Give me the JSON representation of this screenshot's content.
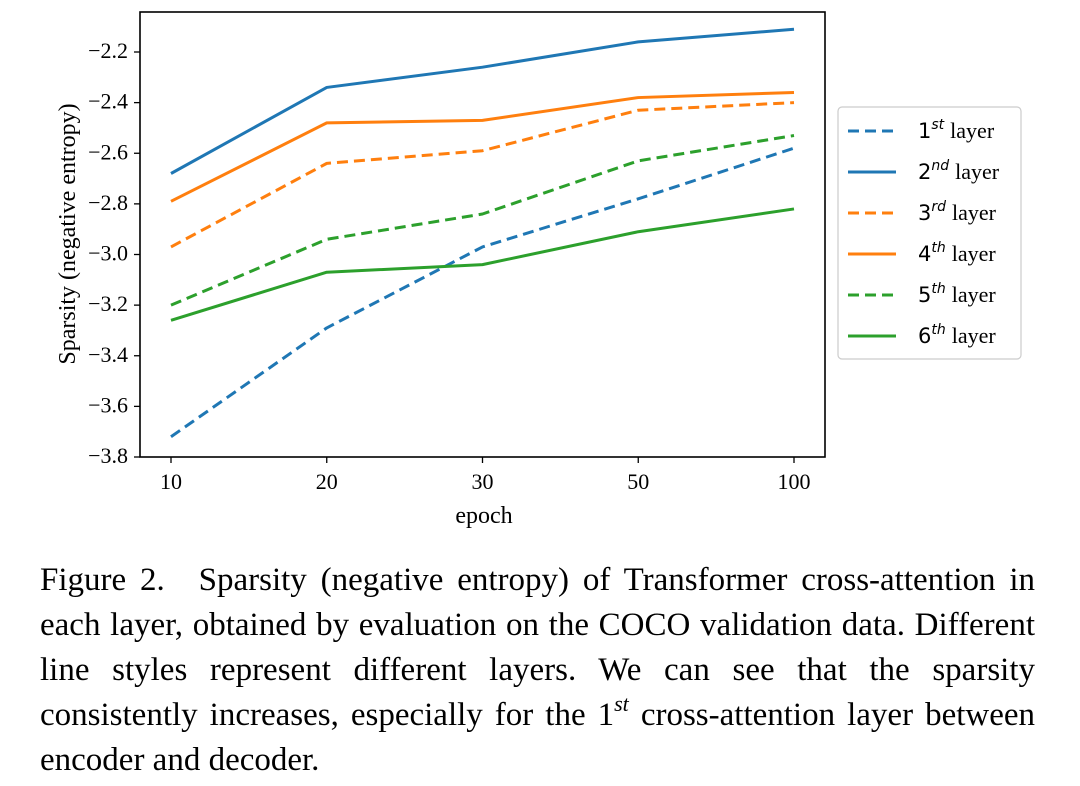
{
  "chart_data": {
    "type": "line",
    "title": "",
    "xlabel": "epoch",
    "ylabel": "Sparsity (negative entropy)",
    "categories": [
      "10",
      "20",
      "30",
      "50",
      "100"
    ],
    "ylim": [
      -3.8,
      -2.05
    ],
    "yticks": [
      -2.2,
      -2.4,
      -2.6,
      -2.8,
      -3.0,
      -3.2,
      -3.4,
      -3.6,
      -3.8
    ],
    "ytick_labels": [
      "−2.2",
      "−2.4",
      "−2.6",
      "−2.8",
      "−3.0",
      "−3.2",
      "−3.4",
      "−3.6",
      "−3.8"
    ],
    "legend_position": "right outside",
    "series": [
      {
        "name": "1st layer",
        "ord": "1",
        "sup": "st",
        "word": "layer",
        "color": "#1f77b4",
        "style": "dashed",
        "values": [
          -3.72,
          -3.29,
          -2.97,
          -2.78,
          -2.58
        ]
      },
      {
        "name": "2nd layer",
        "ord": "2",
        "sup": "nd",
        "word": "layer",
        "color": "#1f77b4",
        "style": "solid",
        "values": [
          -2.68,
          -2.34,
          -2.26,
          -2.16,
          -2.11
        ]
      },
      {
        "name": "3rd layer",
        "ord": "3",
        "sup": "rd",
        "word": "layer",
        "color": "#ff7f0e",
        "style": "dashed",
        "values": [
          -2.97,
          -2.64,
          -2.59,
          -2.43,
          -2.4
        ]
      },
      {
        "name": "4th layer",
        "ord": "4",
        "sup": "th",
        "word": "layer",
        "color": "#ff7f0e",
        "style": "solid",
        "values": [
          -2.79,
          -2.48,
          -2.47,
          -2.38,
          -2.36
        ]
      },
      {
        "name": "5th layer",
        "ord": "5",
        "sup": "th",
        "word": "layer",
        "color": "#2ca02c",
        "style": "dashed",
        "values": [
          -3.2,
          -2.94,
          -2.84,
          -2.63,
          -2.53
        ]
      },
      {
        "name": "6th layer",
        "ord": "6",
        "sup": "th",
        "word": "layer",
        "color": "#2ca02c",
        "style": "solid",
        "values": [
          -3.26,
          -3.07,
          -3.04,
          -2.91,
          -2.82
        ]
      }
    ]
  },
  "caption": {
    "label": "Figure 2.",
    "text_before": "Sparsity (negative entropy) of Transformer cross-attention in each layer, obtained by evaluation on the COCO validation data. Different line styles represent different layers. We can see that the sparsity consistently increases, especially for the 1",
    "sup": "st",
    "text_after": " cross-attention layer between encoder and decoder."
  }
}
